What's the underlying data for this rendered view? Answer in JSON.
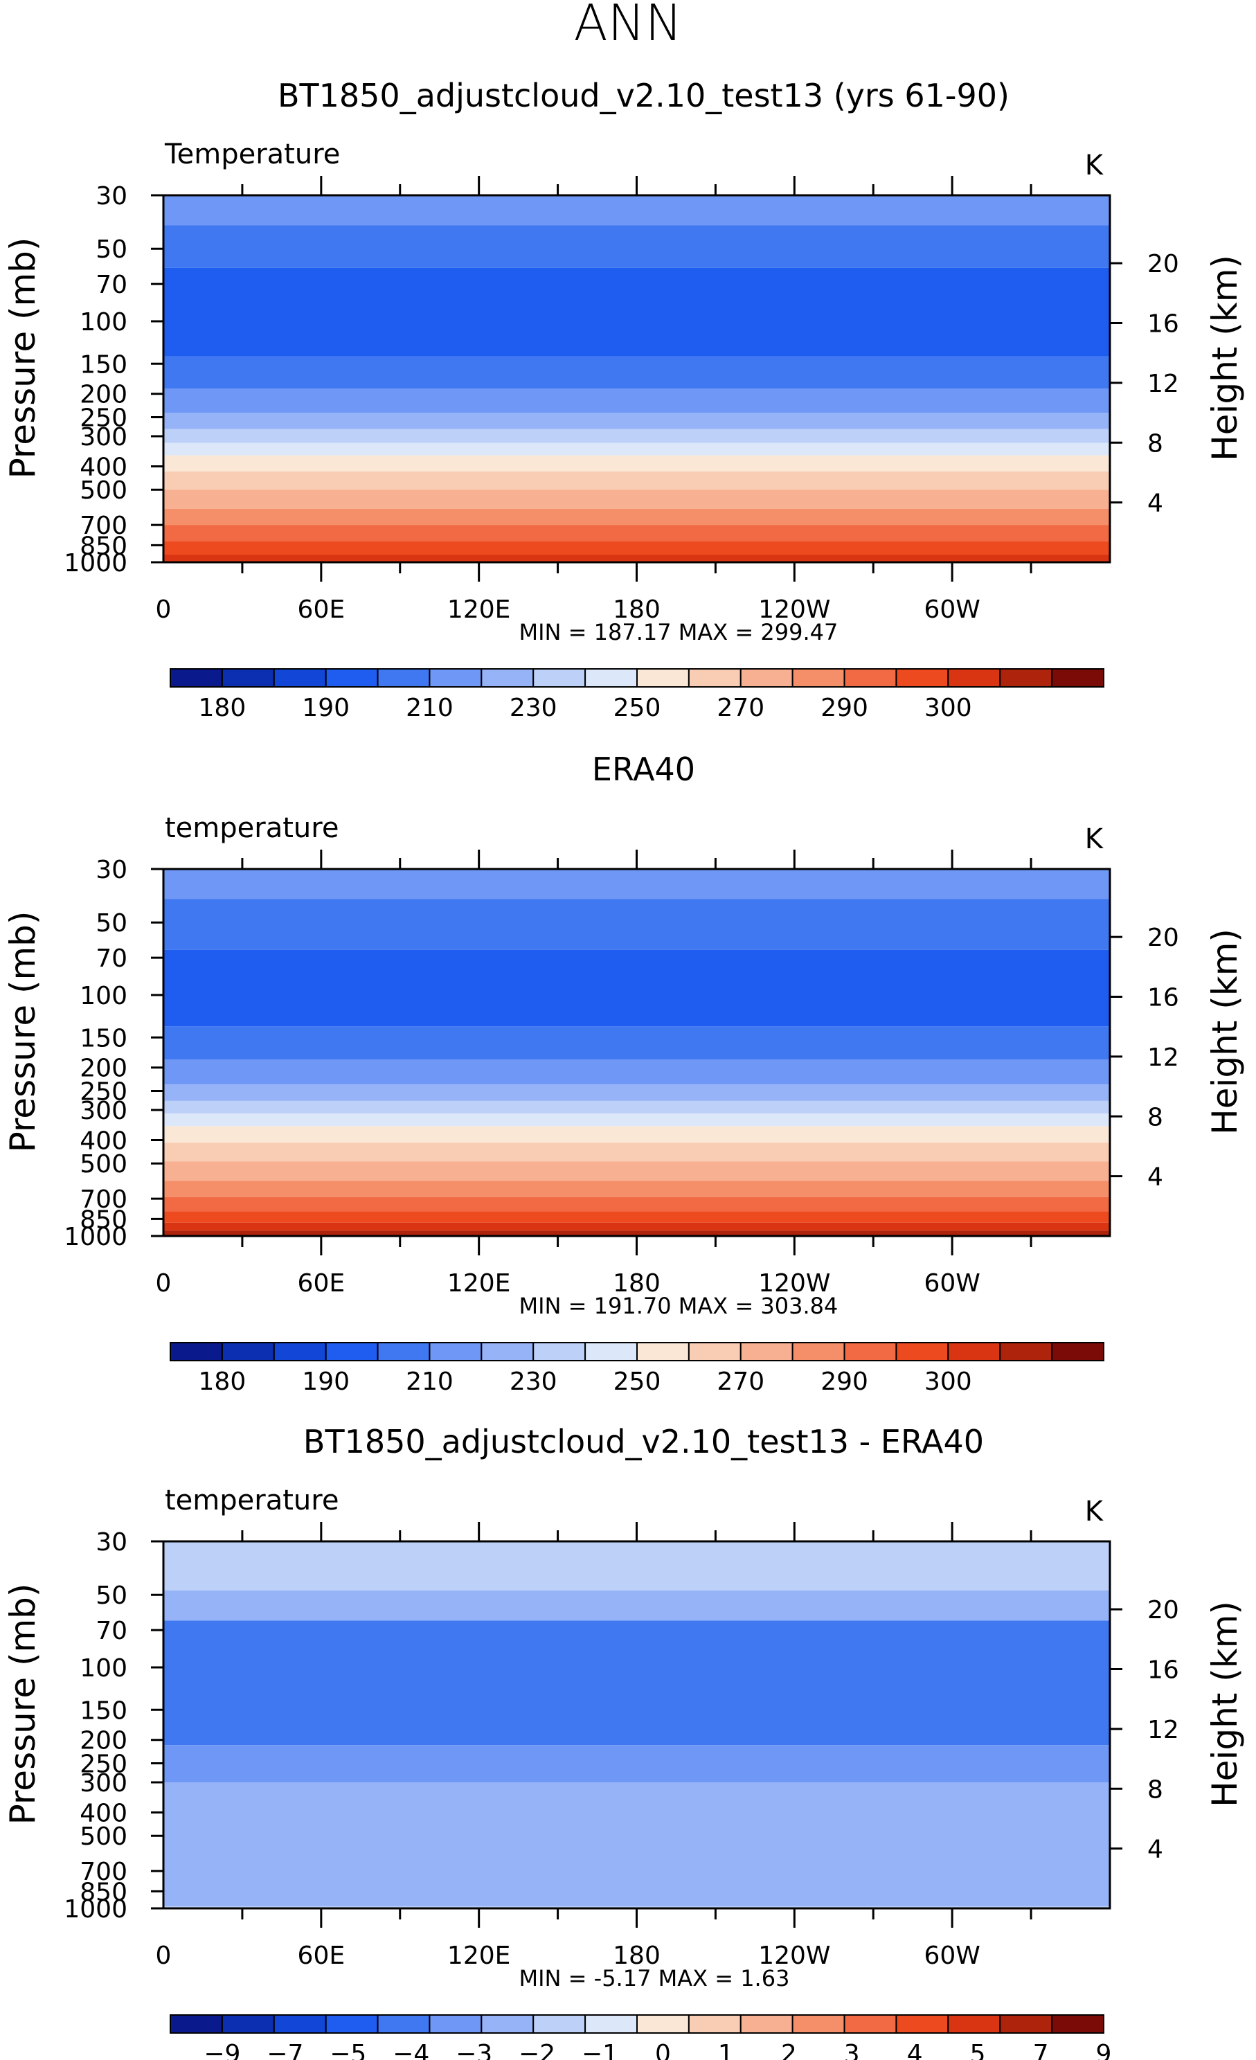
{
  "page_title": "ANN",
  "chart_data": [
    {
      "type": "heatmap",
      "title": "BT1850_adjustcloud_v2.10_test13 (yrs 61-90)",
      "variable_label": "Temperature",
      "units": "K",
      "ylabel": "Pressure (mb)",
      "ylabel_right": "Height (km)",
      "xlabel": "",
      "x_ticks": [
        "0",
        "60E",
        "120E",
        "180",
        "120W",
        "60W"
      ],
      "y_ticks": [
        30,
        50,
        70,
        100,
        150,
        200,
        250,
        300,
        400,
        500,
        700,
        850,
        1000
      ],
      "y_ticks_right": [
        20,
        16,
        12,
        8,
        4
      ],
      "min_max_text": "MIN = 187.17   MAX = 299.47",
      "min": 187.17,
      "max": 299.47,
      "colorbar_levels": [
        "180",
        "190",
        "210",
        "230",
        "250",
        "270",
        "290",
        "300"
      ],
      "colorbar_colors": [
        "#0a1a8c",
        "#0b2fb0",
        "#1246d6",
        "#1f5cf0",
        "#3f78f0",
        "#6f97f5",
        "#95b3f6",
        "#bcd0f8",
        "#dce8fa",
        "#fae7d6",
        "#f9cdb3",
        "#f7b091",
        "#f48f69",
        "#f26a43",
        "#ee4a1f",
        "#d93512",
        "#ad230b",
        "#7a0b06"
      ],
      "bands": [
        {
          "p_top": 30,
          "p_bot": 40,
          "color": "#6f97f5"
        },
        {
          "p_top": 40,
          "p_bot": 60,
          "color": "#3f78f0"
        },
        {
          "p_top": 60,
          "p_bot": 140,
          "color": "#1f5cf0"
        },
        {
          "p_top": 140,
          "p_bot": 190,
          "color": "#3f78f0"
        },
        {
          "p_top": 190,
          "p_bot": 240,
          "color": "#6f97f5"
        },
        {
          "p_top": 240,
          "p_bot": 280,
          "color": "#95b3f6"
        },
        {
          "p_top": 280,
          "p_bot": 320,
          "color": "#bcd0f8"
        },
        {
          "p_top": 320,
          "p_bot": 360,
          "color": "#dce8fa"
        },
        {
          "p_top": 360,
          "p_bot": 420,
          "color": "#fae7d6"
        },
        {
          "p_top": 420,
          "p_bot": 500,
          "color": "#f9cdb3"
        },
        {
          "p_top": 500,
          "p_bot": 600,
          "color": "#f7b091"
        },
        {
          "p_top": 600,
          "p_bot": 700,
          "color": "#f48f69"
        },
        {
          "p_top": 700,
          "p_bot": 820,
          "color": "#f26a43"
        },
        {
          "p_top": 820,
          "p_bot": 930,
          "color": "#ee4a1f"
        },
        {
          "p_top": 930,
          "p_bot": 1000,
          "color": "#d93512"
        }
      ]
    },
    {
      "type": "heatmap",
      "title": "ERA40",
      "variable_label": "temperature",
      "units": "K",
      "ylabel": "Pressure (mb)",
      "ylabel_right": "Height (km)",
      "xlabel": "",
      "x_ticks": [
        "0",
        "60E",
        "120E",
        "180",
        "120W",
        "60W"
      ],
      "y_ticks": [
        30,
        50,
        70,
        100,
        150,
        200,
        250,
        300,
        400,
        500,
        700,
        850,
        1000
      ],
      "y_ticks_right": [
        20,
        16,
        12,
        8,
        4
      ],
      "min_max_text": "MIN = 191.70   MAX = 303.84",
      "min": 191.7,
      "max": 303.84,
      "colorbar_levels": [
        "180",
        "190",
        "210",
        "230",
        "250",
        "270",
        "290",
        "300"
      ],
      "colorbar_colors": [
        "#0a1a8c",
        "#0b2fb0",
        "#1246d6",
        "#1f5cf0",
        "#3f78f0",
        "#6f97f5",
        "#95b3f6",
        "#bcd0f8",
        "#dce8fa",
        "#fae7d6",
        "#f9cdb3",
        "#f7b091",
        "#f48f69",
        "#f26a43",
        "#ee4a1f",
        "#d93512",
        "#ad230b",
        "#7a0b06"
      ],
      "bands": [
        {
          "p_top": 30,
          "p_bot": 40,
          "color": "#6f97f5"
        },
        {
          "p_top": 40,
          "p_bot": 65,
          "color": "#3f78f0"
        },
        {
          "p_top": 65,
          "p_bot": 135,
          "color": "#1f5cf0"
        },
        {
          "p_top": 135,
          "p_bot": 185,
          "color": "#3f78f0"
        },
        {
          "p_top": 185,
          "p_bot": 235,
          "color": "#6f97f5"
        },
        {
          "p_top": 235,
          "p_bot": 275,
          "color": "#95b3f6"
        },
        {
          "p_top": 275,
          "p_bot": 310,
          "color": "#bcd0f8"
        },
        {
          "p_top": 310,
          "p_bot": 350,
          "color": "#dce8fa"
        },
        {
          "p_top": 350,
          "p_bot": 410,
          "color": "#fae7d6"
        },
        {
          "p_top": 410,
          "p_bot": 490,
          "color": "#f9cdb3"
        },
        {
          "p_top": 490,
          "p_bot": 590,
          "color": "#f7b091"
        },
        {
          "p_top": 590,
          "p_bot": 690,
          "color": "#f48f69"
        },
        {
          "p_top": 690,
          "p_bot": 790,
          "color": "#f26a43"
        },
        {
          "p_top": 790,
          "p_bot": 880,
          "color": "#ee4a1f"
        },
        {
          "p_top": 880,
          "p_bot": 950,
          "color": "#d93512"
        },
        {
          "p_top": 950,
          "p_bot": 1000,
          "color": "#ad230b"
        }
      ]
    },
    {
      "type": "heatmap",
      "title": "BT1850_adjustcloud_v2.10_test13 - ERA40",
      "variable_label": "temperature",
      "units": "K",
      "ylabel": "Pressure (mb)",
      "ylabel_right": "Height (km)",
      "xlabel": "",
      "x_ticks": [
        "0",
        "60E",
        "120E",
        "180",
        "120W",
        "60W"
      ],
      "y_ticks": [
        30,
        50,
        70,
        100,
        150,
        200,
        250,
        300,
        400,
        500,
        700,
        850,
        1000
      ],
      "y_ticks_right": [
        20,
        16,
        12,
        8,
        4
      ],
      "min_max_text": "MIN = -5.17   MAX = 1.63",
      "min": -5.17,
      "max": 1.63,
      "colorbar_levels": [
        "-9",
        "-7",
        "-5",
        "-4",
        "-3",
        "-2",
        "-1",
        "0",
        "1",
        "2",
        "3",
        "4",
        "5",
        "7",
        "9"
      ],
      "colorbar_colors": [
        "#0a1a8c",
        "#0b2fb0",
        "#1246d6",
        "#1f5cf0",
        "#3f78f0",
        "#6f97f5",
        "#95b3f6",
        "#bcd0f8",
        "#dce8fa",
        "#fae7d6",
        "#f9cdb3",
        "#f7b091",
        "#f48f69",
        "#f26a43",
        "#ee4a1f",
        "#d93512",
        "#ad230b",
        "#7a0b06"
      ],
      "bands": [
        {
          "p_top": 30,
          "p_bot": 48,
          "color": "#bcd0f8"
        },
        {
          "p_top": 48,
          "p_bot": 64,
          "color": "#95b3f6"
        },
        {
          "p_top": 64,
          "p_bot": 210,
          "color": "#3f78f0"
        },
        {
          "p_top": 210,
          "p_bot": 300,
          "color": "#6f97f5"
        },
        {
          "p_top": 300,
          "p_bot": 980,
          "color": "#95b3f6"
        },
        {
          "p_top": 980,
          "p_bot": 1000,
          "color": "#bcd0f8"
        }
      ]
    }
  ]
}
